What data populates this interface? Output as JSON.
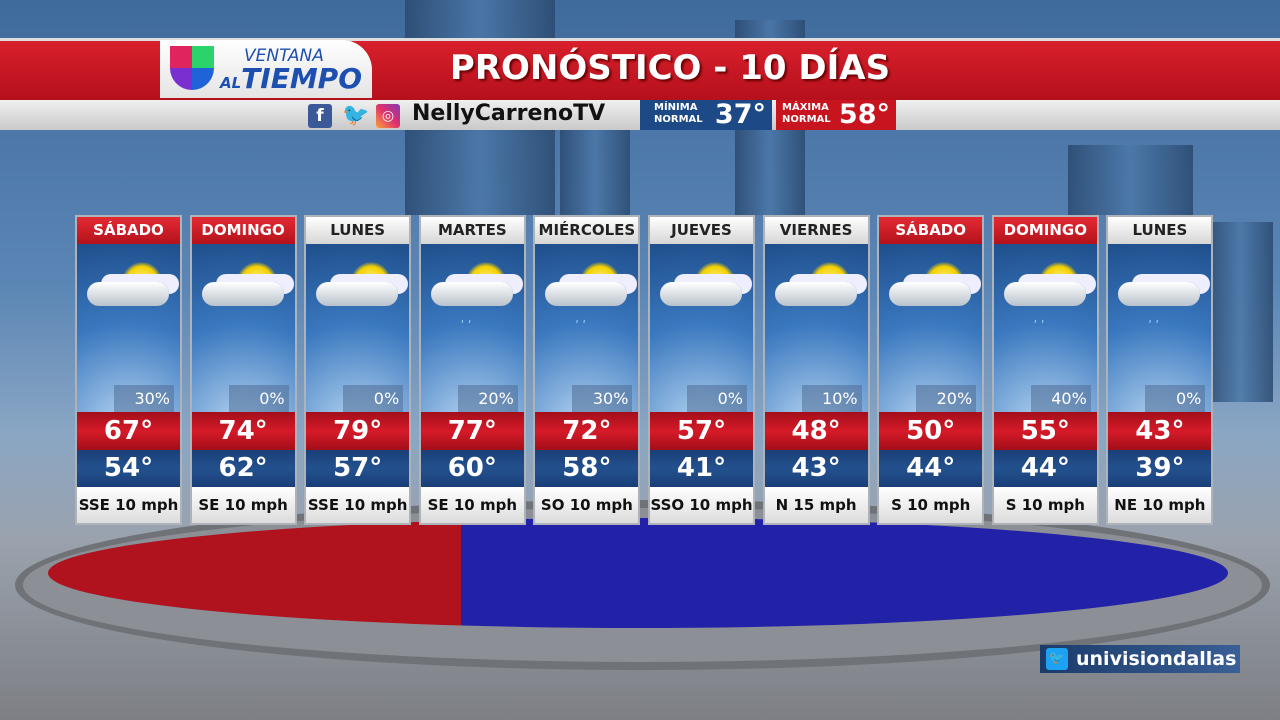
{
  "header": {
    "logo_top": "VENTANA",
    "logo_small": "AL",
    "logo_main": "TIEMPO",
    "title": "PRONÓSTICO - 10 DÍAS"
  },
  "social": {
    "icons": [
      "facebook-icon",
      "twitter-icon",
      "instagram-icon"
    ],
    "handle": "NellyCarrenoTV"
  },
  "normals": {
    "min_label1": "MÍNIMA",
    "min_label2": "NORMAL",
    "min_value": "37°",
    "max_label1": "MÁXIMA",
    "max_label2": "NORMAL",
    "max_value": "58°"
  },
  "colors": {
    "red": "#c8141f",
    "blue": "#1d4a86",
    "weekend_header": "#d61a28"
  },
  "days": [
    {
      "day": "SÁBADO",
      "weekend": true,
      "icon": "partly-cloudy-icon",
      "pct": "30%",
      "hi": "67°",
      "lo": "54°",
      "wind": "SSE 10 mph"
    },
    {
      "day": "DOMINGO",
      "weekend": true,
      "icon": "mostly-cloudy-icon",
      "pct": "0%",
      "hi": "74°",
      "lo": "62°",
      "wind": "SE 10 mph"
    },
    {
      "day": "LUNES",
      "weekend": false,
      "icon": "partly-cloudy-icon",
      "pct": "0%",
      "hi": "79°",
      "lo": "57°",
      "wind": "SSE 10 mph"
    },
    {
      "day": "MARTES",
      "weekend": false,
      "icon": "partly-cloudy-showers-icon",
      "pct": "20%",
      "hi": "77°",
      "lo": "60°",
      "wind": "SE 10 mph"
    },
    {
      "day": "MIÉRCOLES",
      "weekend": false,
      "icon": "partly-cloudy-showers-icon",
      "pct": "30%",
      "hi": "72°",
      "lo": "58°",
      "wind": "SO 10 mph"
    },
    {
      "day": "JUEVES",
      "weekend": false,
      "icon": "partly-cloudy-icon",
      "pct": "0%",
      "hi": "57°",
      "lo": "41°",
      "wind": "SSO 10 mph"
    },
    {
      "day": "VIERNES",
      "weekend": false,
      "icon": "mostly-cloudy-icon",
      "pct": "10%",
      "hi": "48°",
      "lo": "43°",
      "wind": "N 15 mph"
    },
    {
      "day": "SÁBADO",
      "weekend": true,
      "icon": "partly-cloudy-icon",
      "pct": "20%",
      "hi": "50°",
      "lo": "44°",
      "wind": "S 10 mph"
    },
    {
      "day": "DOMINGO",
      "weekend": true,
      "icon": "partly-cloudy-showers-icon",
      "pct": "40%",
      "hi": "55°",
      "lo": "44°",
      "wind": "S 10 mph"
    },
    {
      "day": "LUNES",
      "weekend": false,
      "icon": "cloudy-showers-icon",
      "pct": "0%",
      "hi": "43°",
      "lo": "39°",
      "wind": "NE 10 mph"
    }
  ],
  "footer": {
    "twitter_handle": "univisiondallas"
  }
}
